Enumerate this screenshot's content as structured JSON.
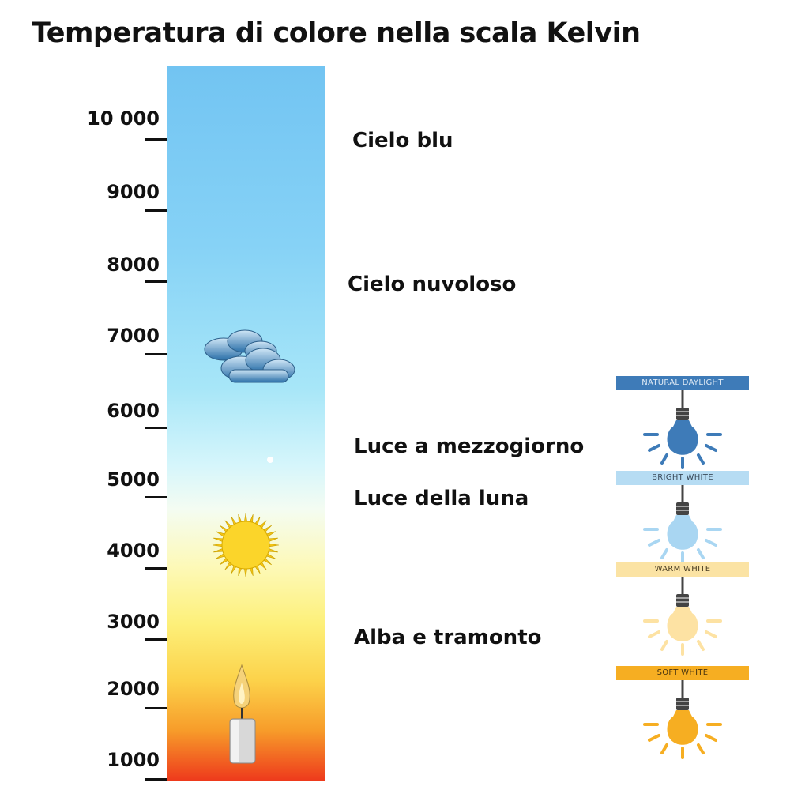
{
  "title": "Temperatura di colore nella scala Kelvin",
  "scale": {
    "ticks": [
      "10 000",
      "9000",
      "8000",
      "7000",
      "6000",
      "5000",
      "4000",
      "3000",
      "2000",
      "1000"
    ]
  },
  "descriptions": [
    "Cielo blu",
    "Cielo nuvoloso",
    "Luce a mezzogiorno",
    "Luce della luna",
    "Alba e tramonto"
  ],
  "icons": [
    "cloud-icon",
    "sun-icon",
    "candle-icon"
  ],
  "bulbs": [
    {
      "label": "NATURAL DAYLIGHT",
      "band_color": "#3e7bb8",
      "text_color": "#dfeaf5",
      "bulb_color": "#3e7bb8"
    },
    {
      "label": "BRIGHT WHITE",
      "band_color": "#b6dcf3",
      "text_color": "#3a4a5a",
      "bulb_color": "#a9d6f2"
    },
    {
      "label": "WARM WHITE",
      "band_color": "#fbe3a4",
      "text_color": "#4a3d22",
      "bulb_color": "#fde2a3"
    },
    {
      "label": "SOFT WHITE",
      "band_color": "#f6ae22",
      "text_color": "#4a3510",
      "bulb_color": "#f6ae22"
    }
  ]
}
